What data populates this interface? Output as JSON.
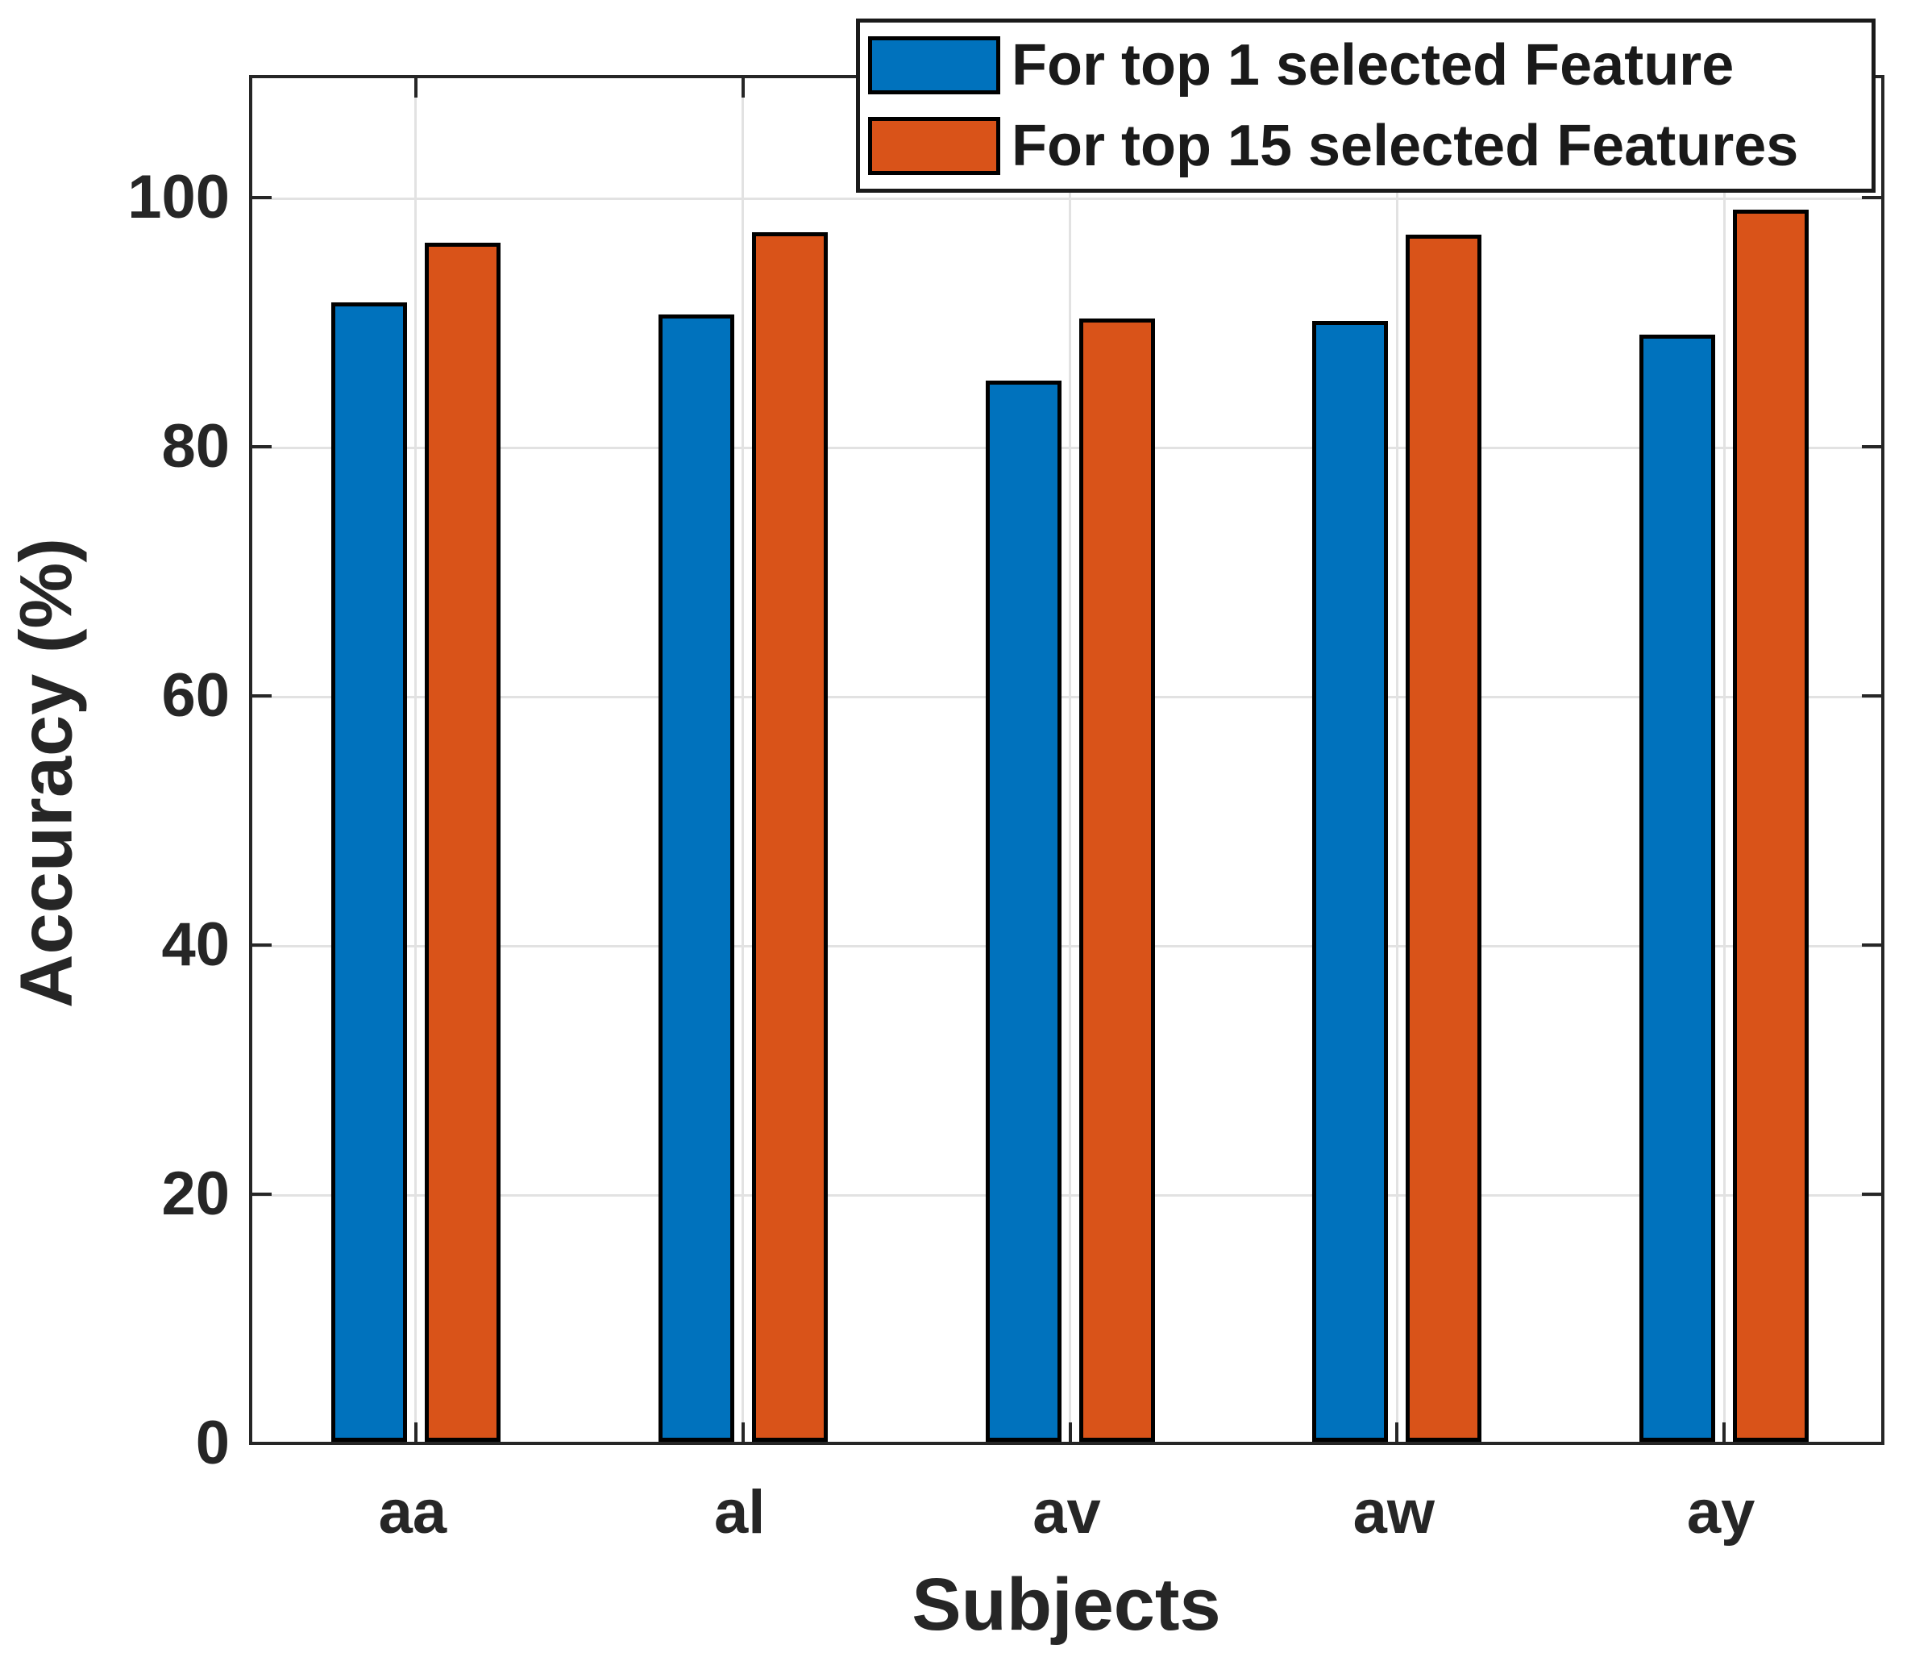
{
  "figure": {
    "ylabel": "Accuracy (%)",
    "xlabel": "Subjects"
  },
  "legend": {
    "items": [
      {
        "label": "For top 1 selected Feature",
        "color": "#0072BD"
      },
      {
        "label": "For top 15 selected Features",
        "color": "#D95319"
      }
    ]
  },
  "chart_data": {
    "type": "bar",
    "title": "",
    "categories": [
      "aa",
      "al",
      "av",
      "aw",
      "ay"
    ],
    "series": [
      {
        "name": "For top 1 selected Feature",
        "color": "#0072BD",
        "values": [
          91.5,
          90.5,
          85.2,
          90.0,
          88.9
        ]
      },
      {
        "name": "For top 15 selected Features",
        "color": "#D95319",
        "values": [
          96.3,
          97.1,
          90.2,
          96.9,
          98.9
        ]
      }
    ],
    "xlabel": "Subjects",
    "ylabel": "Accuracy (%)",
    "yticks": [
      0,
      20,
      40,
      60,
      80,
      100
    ],
    "ylim": [
      0,
      110
    ],
    "grid": true,
    "legend_position": "top-right",
    "bar_edge_color": "#000000",
    "colors": {
      "series1": "#0072BD",
      "series2": "#D95319",
      "grid": "#e2e2e2",
      "axis": "#262626"
    }
  }
}
